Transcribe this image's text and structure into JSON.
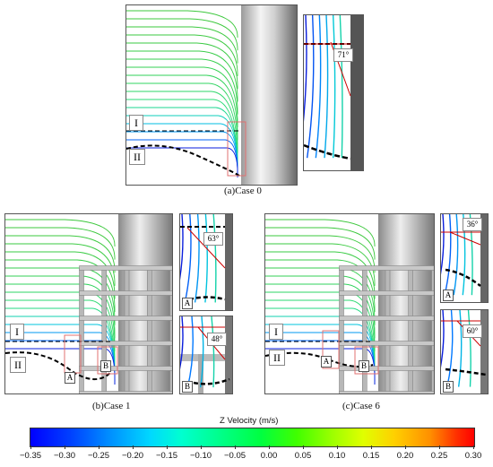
{
  "case0": {
    "caption": "(a)Case 0",
    "region_I": "I",
    "region_II": "II",
    "inset_angle": "71°"
  },
  "case1": {
    "caption": "(b)Case 1",
    "region_I": "I",
    "region_II": "II",
    "marker_A": "A",
    "marker_B": "B",
    "inset_A_angle": "63°",
    "inset_B_angle": "48°"
  },
  "case6": {
    "caption": "(c)Case 6",
    "region_I": "I",
    "region_II": "II",
    "marker_A": "A",
    "marker_B": "B",
    "inset_A_angle": "36°",
    "inset_B_angle": "60°"
  },
  "colorbar": {
    "title": "Z Velocity (m/s)",
    "ticks": [
      "−0.35",
      "−0.30",
      "−0.25",
      "−0.20",
      "−0.15",
      "−0.10",
      "−0.05",
      "0.00",
      "0.05",
      "0.10",
      "0.15",
      "0.20",
      "0.25",
      "0.30"
    ],
    "min": -0.35,
    "max": 0.3
  },
  "colors": {
    "streamline_green": "#33cc33",
    "streamline_cyan": "#00c8e0",
    "streamline_blue": "#0040ff",
    "dashed_line": "#000000",
    "red_line": "#cc0000",
    "highlight_box": "#e07070"
  }
}
